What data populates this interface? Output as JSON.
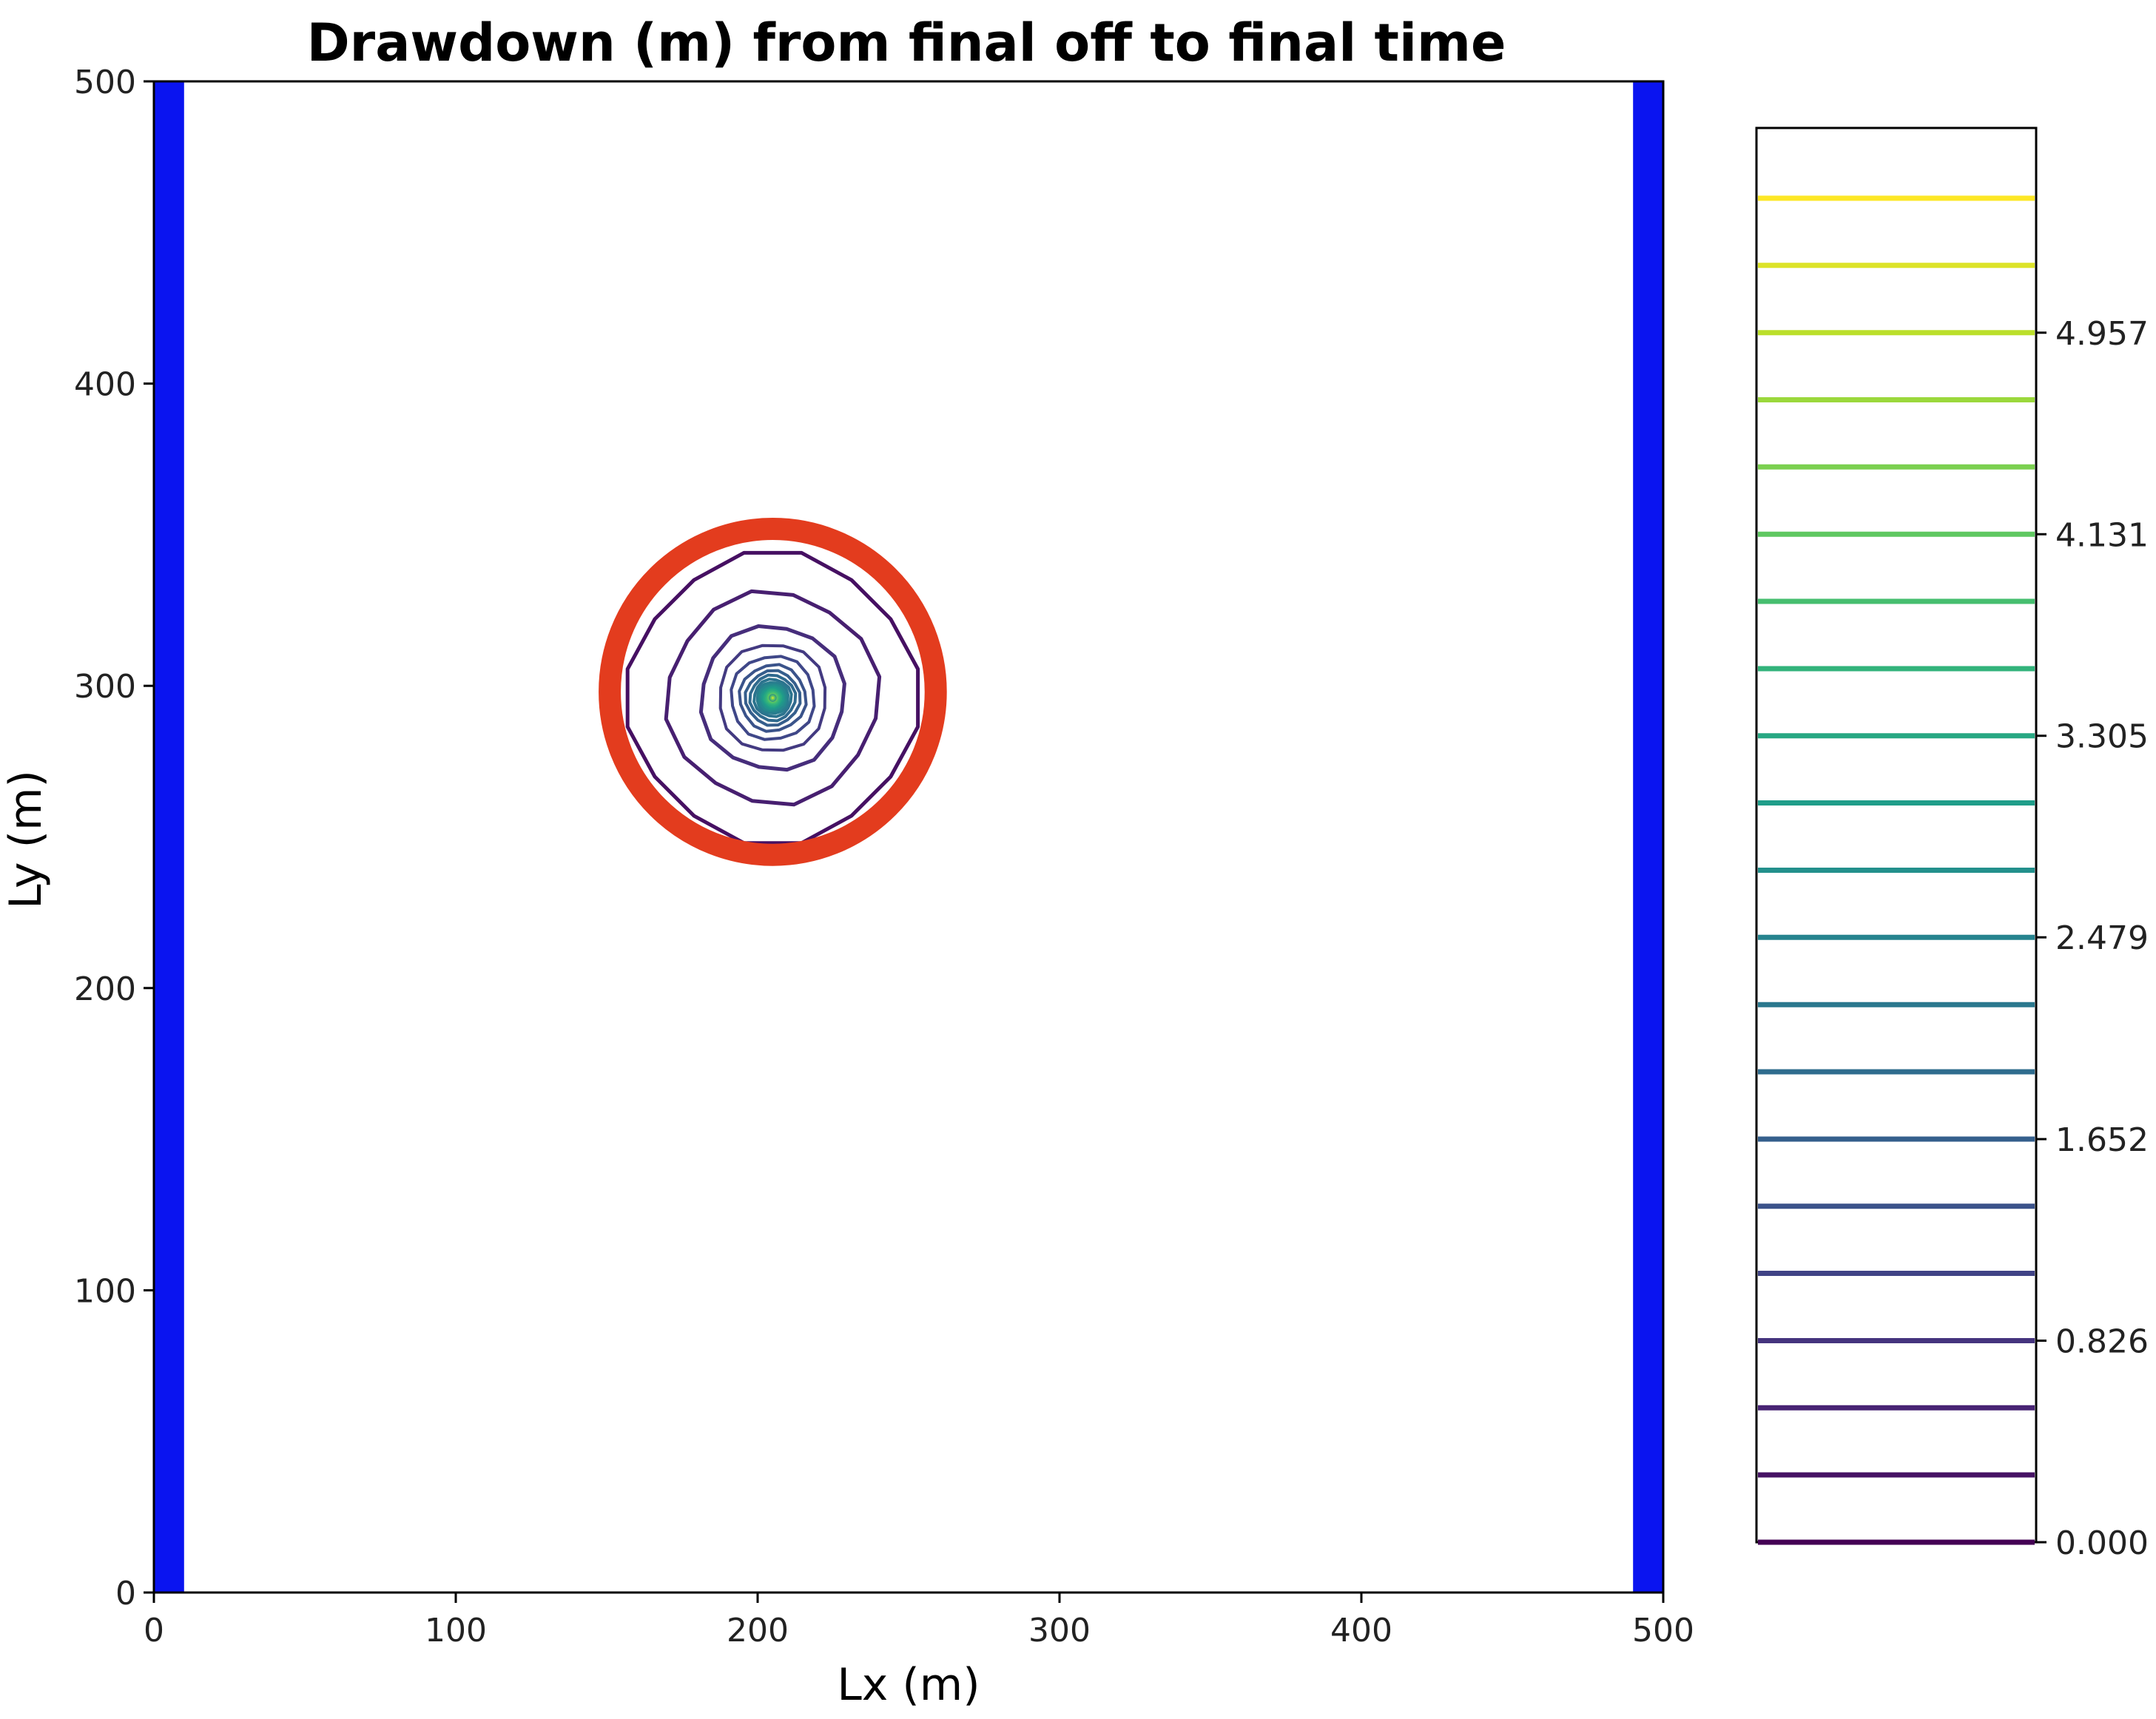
{
  "chart_data": {
    "type": "contour",
    "title": "Drawdown (m) from final off to final time",
    "xlabel": "Lx (m)",
    "ylabel": "Ly (m)",
    "xlim": [
      0,
      500
    ],
    "ylim": [
      0,
      500
    ],
    "xticks": [
      "0",
      "100",
      "200",
      "300",
      "400",
      "500"
    ],
    "yticks": [
      "0",
      "100",
      "200",
      "300",
      "400",
      "500"
    ],
    "boundary_strips": [
      {
        "x0": 0,
        "x1": 10,
        "color": "#0a14f0"
      },
      {
        "x0": 490,
        "x1": 500,
        "color": "#0a14f0"
      }
    ],
    "well": {
      "x": 205,
      "y": 296
    },
    "contour_levels": [
      0.0,
      0.234,
      0.47,
      0.704,
      0.938,
      1.172,
      1.406,
      1.64,
      1.874,
      2.108,
      2.342,
      2.576,
      2.81,
      3.044,
      3.278,
      3.512,
      3.746,
      3.98,
      4.214,
      4.448,
      4.682
    ],
    "contour_rings": [
      {
        "level": 0.234,
        "radius": 48
      },
      {
        "level": 0.47,
        "radius": 35
      },
      {
        "level": 0.704,
        "radius": 24
      },
      {
        "level": 0.938,
        "radius": 18
      },
      {
        "level": 1.172,
        "radius": 14
      },
      {
        "level": 1.406,
        "radius": 11
      },
      {
        "level": 1.64,
        "radius": 9
      },
      {
        "level": 1.874,
        "radius": 7.5
      },
      {
        "level": 2.108,
        "radius": 6.2
      },
      {
        "level": 2.342,
        "radius": 5.2
      },
      {
        "level": 2.576,
        "radius": 4.4
      },
      {
        "level": 2.81,
        "radius": 3.7
      },
      {
        "level": 3.044,
        "radius": 3.1
      },
      {
        "level": 3.278,
        "radius": 2.6
      },
      {
        "level": 3.512,
        "radius": 2.1
      },
      {
        "level": 3.746,
        "radius": 1.7
      },
      {
        "level": 3.98,
        "radius": 1.3
      },
      {
        "level": 4.214,
        "radius": 1.0
      },
      {
        "level": 4.448,
        "radius": 0.7
      },
      {
        "level": 4.682,
        "radius": 0.4
      }
    ],
    "colorbar": {
      "ticks": [
        {
          "value": 0.0,
          "label": "0.000"
        },
        {
          "value": 0.826,
          "label": "0.826"
        },
        {
          "value": 1.652,
          "label": "1.652"
        },
        {
          "value": 2.479,
          "label": "2.479"
        },
        {
          "value": 3.305,
          "label": "3.305"
        },
        {
          "value": 4.131,
          "label": "4.131"
        },
        {
          "value": 4.957,
          "label": "4.957"
        }
      ],
      "line_values": [
        0.0,
        0.276,
        0.551,
        0.826,
        1.102,
        1.377,
        1.652,
        1.928,
        2.203,
        2.479,
        2.754,
        3.03,
        3.305,
        3.58,
        3.856,
        4.131,
        4.407,
        4.682,
        4.957,
        5.233,
        5.508
      ],
      "range": [
        0.0,
        5.508
      ]
    },
    "annotation": {
      "shape": "circle",
      "color": "#e33c1e",
      "center": {
        "x": 205,
        "y": 298
      },
      "radius": 54
    },
    "colormap": "viridis",
    "grid": false
  }
}
